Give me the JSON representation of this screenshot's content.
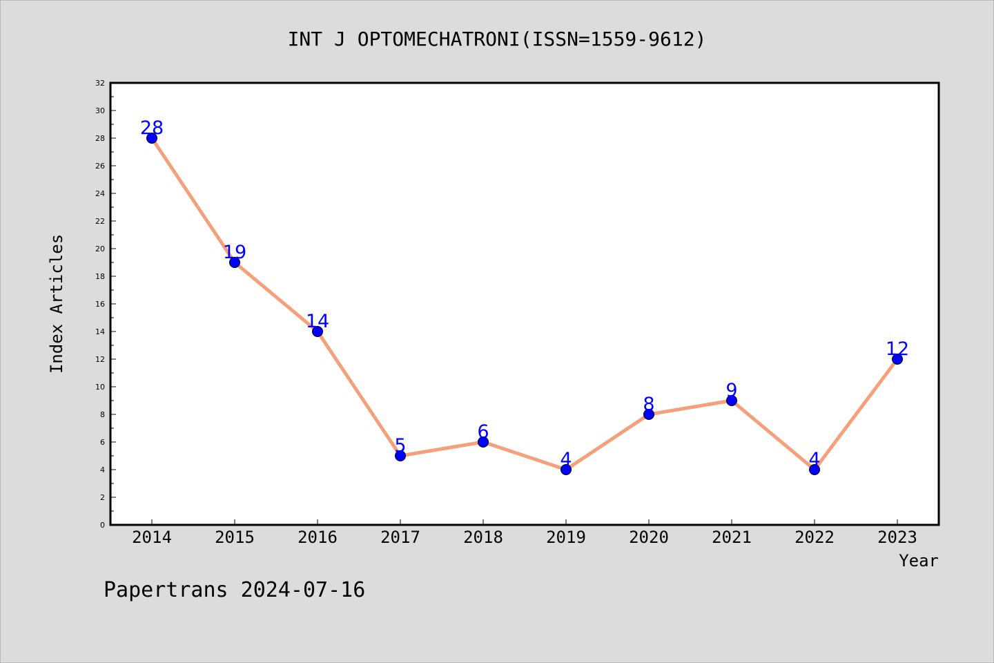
{
  "chart_data": {
    "type": "line",
    "title": "INT J OPTOMECHATRONI(ISSN=1559-9612)",
    "xlabel": "Year",
    "ylabel": "Index Articles",
    "footer": "Papertrans 2024-07-16",
    "ylim": [
      0,
      32
    ],
    "ytick_step": 2,
    "grid": false,
    "legend": "none",
    "categories": [
      "2014",
      "2015",
      "2016",
      "2017",
      "2018",
      "2019",
      "2020",
      "2021",
      "2022",
      "2023"
    ],
    "series": [
      {
        "values": [
          28,
          19,
          14,
          5,
          6,
          4,
          8,
          9,
          4,
          12
        ]
      }
    ],
    "colors": {
      "line": "#f5a07a",
      "marker": "#0000ff",
      "marker_edge": "#000000",
      "data_label": "#0000ff",
      "plot_bg": "#ffffff",
      "figure_bg": "#dcdcdc"
    }
  }
}
